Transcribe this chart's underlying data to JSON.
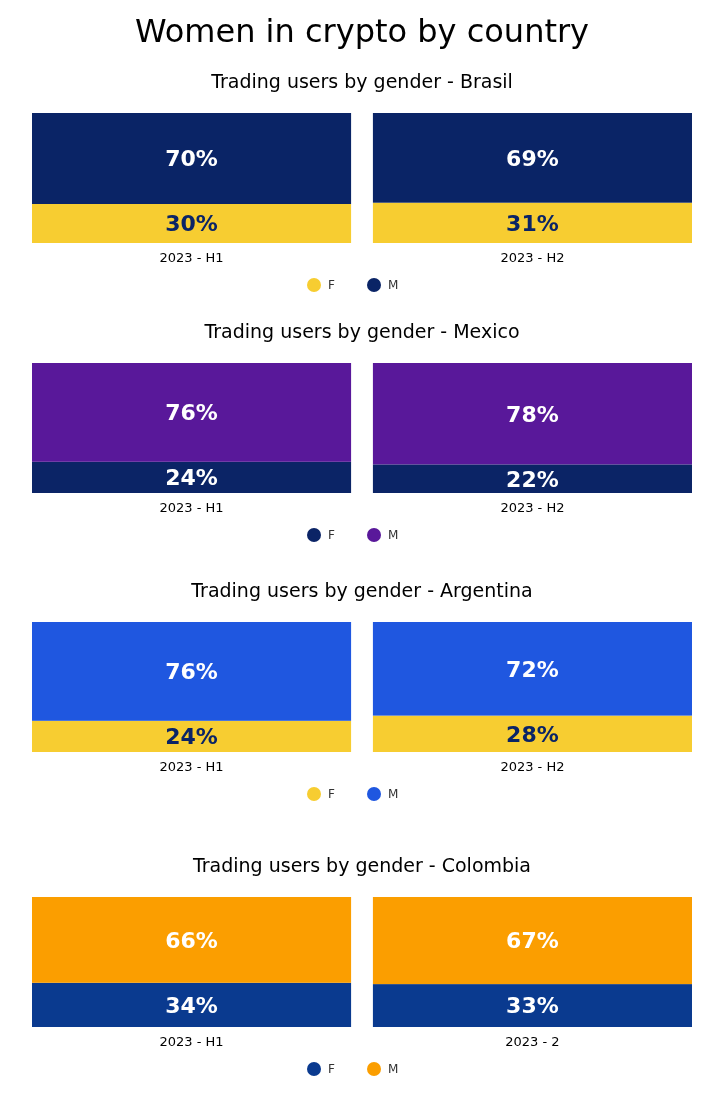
{
  "chart_data": [
    {
      "type": "bar",
      "title": "Women in crypto by country",
      "subtitle": "Trading users by gender - Brasil",
      "categories": [
        "2023 - H1",
        "2023 - H2"
      ],
      "stacked": true,
      "legend": "bottom",
      "marker": "circle",
      "series": [
        {
          "name": "F",
          "color": "#f7cd31",
          "values": [
            30,
            31
          ],
          "value_labels": [
            "30%",
            "31%"
          ]
        },
        {
          "name": "M",
          "color": "#0a2466",
          "values": [
            70,
            69
          ],
          "value_labels": [
            "70%",
            "69%"
          ]
        }
      ]
    },
    {
      "type": "bar",
      "title": "Trading users by gender - Mexico",
      "categories": [
        "2023 - H1",
        "2023 - H2"
      ],
      "stacked": true,
      "legend": "bottom",
      "marker": "circle",
      "series": [
        {
          "name": "F",
          "color": "#0b2466",
          "values": [
            24,
            22
          ],
          "value_labels": [
            "24%",
            "22%"
          ]
        },
        {
          "name": "M",
          "color": "#59189a",
          "values": [
            76,
            78
          ],
          "value_labels": [
            "76%",
            "78%"
          ]
        }
      ]
    },
    {
      "type": "bar",
      "title": "Trading users by gender - Argentina",
      "categories": [
        "2023 - H1",
        "2023 - H2"
      ],
      "stacked": true,
      "legend": "bottom",
      "marker": "circle",
      "series": [
        {
          "name": "F",
          "color": "#f7cd31",
          "values": [
            24,
            28
          ],
          "value_labels": [
            "24%",
            "28%"
          ]
        },
        {
          "name": "M",
          "color": "#1f57e0",
          "values": [
            76,
            72
          ],
          "value_labels": [
            "76%",
            "72%"
          ]
        }
      ]
    },
    {
      "type": "bar",
      "title": "Trading users by gender - Colombia",
      "categories": [
        "2023 - H1",
        "2023 - 2"
      ],
      "stacked": true,
      "legend": "bottom",
      "marker": "circle",
      "series": [
        {
          "name": "F",
          "color": "#0a3a8f",
          "values": [
            34,
            33
          ],
          "value_labels": [
            "34%",
            "33%"
          ]
        },
        {
          "name": "M",
          "color": "#fb9e00",
          "values": [
            66,
            67
          ],
          "value_labels": [
            "66%",
            "67%"
          ]
        }
      ]
    }
  ]
}
